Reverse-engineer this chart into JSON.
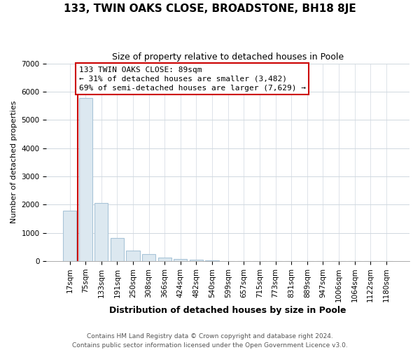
{
  "title": "133, TWIN OAKS CLOSE, BROADSTONE, BH18 8JE",
  "subtitle": "Size of property relative to detached houses in Poole",
  "xlabel": "Distribution of detached houses by size in Poole",
  "ylabel": "Number of detached properties",
  "bar_labels": [
    "17sqm",
    "75sqm",
    "133sqm",
    "191sqm",
    "250sqm",
    "308sqm",
    "366sqm",
    "424sqm",
    "482sqm",
    "540sqm",
    "599sqm",
    "657sqm",
    "715sqm",
    "773sqm",
    "831sqm",
    "889sqm",
    "947sqm",
    "1006sqm",
    "1064sqm",
    "1122sqm",
    "1180sqm"
  ],
  "bar_values": [
    1780,
    5780,
    2060,
    810,
    370,
    240,
    115,
    75,
    45,
    25,
    8,
    3,
    2,
    0,
    0,
    0,
    0,
    0,
    0,
    0,
    0
  ],
  "bar_fill_color": "#dce8f0",
  "bar_edge_color": "#a8c4d8",
  "red_line_color": "#cc0000",
  "red_line_x": 0.5,
  "annotation_text": "133 TWIN OAKS CLOSE: 89sqm\n← 31% of detached houses are smaller (3,482)\n69% of semi-detached houses are larger (7,629) →",
  "annotation_box_color": "#ffffff",
  "annotation_box_edge": "#cc0000",
  "ylim": [
    0,
    7000
  ],
  "yticks": [
    0,
    1000,
    2000,
    3000,
    4000,
    5000,
    6000,
    7000
  ],
  "footer1": "Contains HM Land Registry data © Crown copyright and database right 2024.",
  "footer2": "Contains public sector information licensed under the Open Government Licence v3.0.",
  "grid_color": "#d0d8e0",
  "title_fontsize": 11,
  "subtitle_fontsize": 9,
  "ylabel_fontsize": 8,
  "xlabel_fontsize": 9,
  "tick_fontsize": 7.5,
  "annotation_fontsize": 8,
  "footer_fontsize": 6.5
}
